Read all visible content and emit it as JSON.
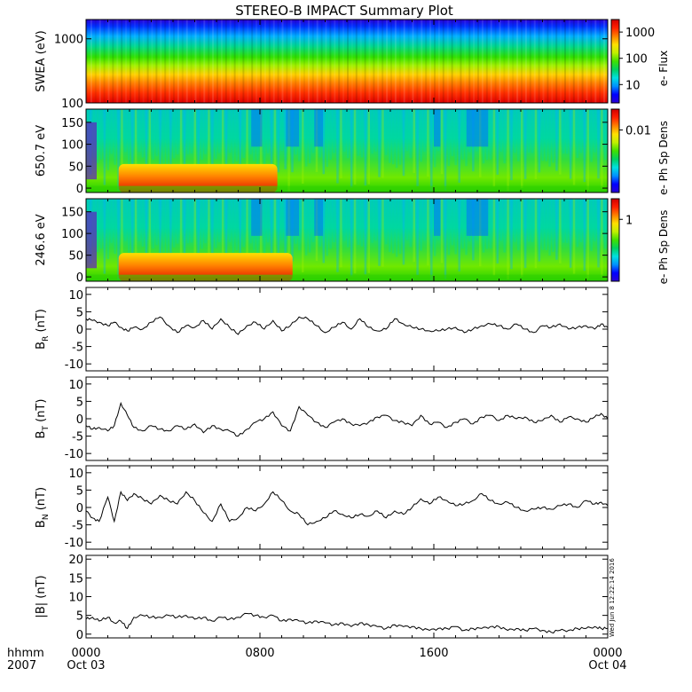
{
  "title": "STEREO-B IMPACT Summary Plot",
  "stamp": "Wed Jun  8 12:22:14 2016",
  "time_axis": {
    "row1_label": "hhmm",
    "row2_label": "2007",
    "ticks": [
      {
        "t": 0,
        "top": "0000",
        "bottom": "Oct 03"
      },
      {
        "t": 8,
        "top": "0800",
        "bottom": ""
      },
      {
        "t": 16,
        "top": "1600",
        "bottom": ""
      },
      {
        "t": 24,
        "top": "0000",
        "bottom": "Oct 04"
      }
    ]
  },
  "colors": {
    "spectrogram_scale": [
      "#2a00d5",
      "#0000ff",
      "#0090ff",
      "#00e0e0",
      "#00d060",
      "#40e000",
      "#c0f000",
      "#ffe000",
      "#ff8000",
      "#ff2000",
      "#d00000"
    ],
    "line": "#000000"
  },
  "chart_data": [
    {
      "type": "heatmap",
      "ylabel": "SWEA (eV)",
      "yscale": "log",
      "ylim": [
        100,
        2000
      ],
      "yticks": [
        {
          "v": 100,
          "label": "100"
        },
        {
          "v": 1000,
          "label": "1000"
        }
      ],
      "colorbar": {
        "label": "e- Flux",
        "scale": "log",
        "range": [
          2,
          3000
        ],
        "ticks": [
          {
            "v": 10,
            "label": "10"
          },
          {
            "v": 100,
            "label": "100"
          },
          {
            "v": 1000,
            "label": "1000"
          }
        ]
      },
      "description_values": "flux increases toward low energy; ~10 near 2000 eV, ~1000+ below 200 eV"
    },
    {
      "type": "heatmap",
      "ylabel": "650.7 eV",
      "ylim": [
        -10,
        180
      ],
      "yticks": [
        {
          "v": 0,
          "label": "0"
        },
        {
          "v": 50,
          "label": "50"
        },
        {
          "v": 100,
          "label": "100"
        },
        {
          "v": 150,
          "label": "150"
        }
      ],
      "colorbar": {
        "label": "e- Ph Sp Dens",
        "ticks": [
          {
            "v": 0.75,
            "label": "0.01"
          }
        ]
      },
      "features": [
        {
          "t_start": 1.5,
          "t_end": 8.8,
          "pa_max": 55,
          "level": "high"
        }
      ]
    },
    {
      "type": "heatmap",
      "ylabel": "246.6 eV",
      "ylim": [
        -10,
        180
      ],
      "yticks": [
        {
          "v": 0,
          "label": "0"
        },
        {
          "v": 50,
          "label": "50"
        },
        {
          "v": 100,
          "label": "100"
        },
        {
          "v": 150,
          "label": "150"
        }
      ],
      "colorbar": {
        "label": "e- Ph Sp Dens",
        "ticks": [
          {
            "v": 0.75,
            "label": "1"
          }
        ]
      },
      "features": [
        {
          "t_start": 1.5,
          "t_end": 9.5,
          "pa_max": 55,
          "level": "high"
        }
      ]
    },
    {
      "type": "line",
      "ylabel": "B_R (nT)",
      "ylim": [
        -12,
        12
      ],
      "yticks": [
        -10,
        -5,
        0,
        5,
        10
      ],
      "x": [
        0,
        0.3,
        0.6,
        1.0,
        1.3,
        1.6,
        1.9,
        2.2,
        2.6,
        3.0,
        3.4,
        3.8,
        4.2,
        4.6,
        5.0,
        5.4,
        5.8,
        6.2,
        6.6,
        7.0,
        7.4,
        7.8,
        8.2,
        8.6,
        9.0,
        9.4,
        9.8,
        10.2,
        10.6,
        11.0,
        11.4,
        11.8,
        12.2,
        12.6,
        13.0,
        13.4,
        13.8,
        14.2,
        14.6,
        15.0,
        15.4,
        15.8,
        16.2,
        16.6,
        17.0,
        17.4,
        17.8,
        18.2,
        18.6,
        19.0,
        19.4,
        19.8,
        20.2,
        20.6,
        21.0,
        21.4,
        21.8,
        22.2,
        22.6,
        23.0,
        23.4,
        23.7,
        24.0
      ],
      "values": [
        3,
        2.5,
        2,
        1,
        2,
        0.5,
        -0.5,
        0.5,
        0,
        2,
        3.5,
        1,
        -1,
        1,
        0.5,
        2.5,
        0,
        3,
        0.5,
        -1.5,
        1,
        2,
        0,
        2.5,
        -0.5,
        1,
        3.5,
        3,
        1,
        -1,
        0.5,
        2,
        0,
        3,
        0.5,
        -0.5,
        0,
        3,
        1.5,
        0.5,
        0,
        -0.5,
        -0.5,
        0,
        0.5,
        -1,
        0,
        1,
        1.5,
        1,
        0,
        1.5,
        0,
        -1,
        1,
        0.5,
        1.5,
        0,
        0.5,
        1,
        0,
        1.5,
        0.5
      ]
    },
    {
      "type": "line",
      "ylabel": "B_T (nT)",
      "ylim": [
        -12,
        12
      ],
      "yticks": [
        -10,
        -5,
        0,
        5,
        10
      ],
      "x": [
        0,
        0.3,
        0.6,
        1.0,
        1.3,
        1.6,
        1.9,
        2.2,
        2.6,
        3.0,
        3.4,
        3.8,
        4.2,
        4.6,
        5.0,
        5.4,
        5.8,
        6.2,
        6.6,
        7.0,
        7.4,
        7.8,
        8.2,
        8.6,
        9.0,
        9.4,
        9.8,
        10.2,
        10.6,
        11.0,
        11.4,
        11.8,
        12.2,
        12.6,
        13.0,
        13.4,
        13.8,
        14.2,
        14.6,
        15.0,
        15.4,
        15.8,
        16.2,
        16.6,
        17.0,
        17.4,
        17.8,
        18.2,
        18.6,
        19.0,
        19.4,
        19.8,
        20.2,
        20.6,
        21.0,
        21.4,
        21.8,
        22.2,
        22.6,
        23.0,
        23.4,
        23.7,
        24.0
      ],
      "values": [
        -2,
        -3,
        -2.5,
        -3.5,
        -2,
        4.5,
        1,
        -2.5,
        -3.5,
        -2,
        -3,
        -3.5,
        -2,
        -3,
        -1.5,
        -4,
        -2,
        -3,
        -3.5,
        -5,
        -3,
        -1,
        0,
        2,
        -2,
        -3.5,
        3.5,
        1,
        -1,
        -2.5,
        -1,
        0,
        -1.5,
        -2,
        -1,
        0.5,
        1,
        -0.5,
        -1,
        -2,
        1,
        -1.5,
        -1,
        -2.5,
        -1,
        0,
        -1.5,
        0.5,
        1,
        -0.5,
        1,
        0,
        0.5,
        -1,
        -0.5,
        1,
        -1,
        0.5,
        0,
        -1,
        0.5,
        1.5,
        0
      ]
    },
    {
      "type": "line",
      "ylabel": "B_N (nT)",
      "ylim": [
        -12,
        12
      ],
      "yticks": [
        -10,
        -5,
        0,
        5,
        10
      ],
      "x": [
        0,
        0.3,
        0.6,
        1.0,
        1.3,
        1.6,
        1.9,
        2.2,
        2.6,
        3.0,
        3.4,
        3.8,
        4.2,
        4.6,
        5.0,
        5.4,
        5.8,
        6.2,
        6.6,
        7.0,
        7.4,
        7.8,
        8.2,
        8.6,
        9.0,
        9.4,
        9.8,
        10.2,
        10.6,
        11.0,
        11.4,
        11.8,
        12.2,
        12.6,
        13.0,
        13.4,
        13.8,
        14.2,
        14.6,
        15.0,
        15.4,
        15.8,
        16.2,
        16.6,
        17.0,
        17.4,
        17.8,
        18.2,
        18.6,
        19.0,
        19.4,
        19.8,
        20.2,
        20.6,
        21.0,
        21.4,
        21.8,
        22.2,
        22.6,
        23.0,
        23.4,
        23.7,
        24.0
      ],
      "values": [
        -1,
        -3,
        -4,
        3,
        -4,
        4.5,
        2,
        4,
        2.5,
        1,
        3.5,
        2,
        1,
        4.5,
        2,
        -1.5,
        -4,
        1,
        -4,
        -3,
        0,
        -1,
        1,
        4.5,
        2,
        -1,
        -2,
        -5,
        -4,
        -3,
        -1,
        -2,
        -3,
        -2,
        -2.5,
        -1,
        -3,
        -1,
        -2,
        0,
        2.5,
        1,
        3,
        2,
        0.5,
        1,
        2,
        4,
        2,
        1,
        1.5,
        0,
        -1,
        -0.5,
        0,
        -0.5,
        0.5,
        1,
        0,
        2,
        1,
        1.5,
        0.5
      ]
    },
    {
      "type": "line",
      "ylabel": "|B| (nT)",
      "ylim": [
        -1,
        21
      ],
      "yticks": [
        0,
        5,
        10,
        15,
        20
      ],
      "x": [
        0,
        0.3,
        0.6,
        1.0,
        1.3,
        1.6,
        1.9,
        2.2,
        2.6,
        3.0,
        3.4,
        3.8,
        4.2,
        4.6,
        5.0,
        5.4,
        5.8,
        6.2,
        6.6,
        7.0,
        7.4,
        7.8,
        8.2,
        8.6,
        9.0,
        9.4,
        9.8,
        10.2,
        10.6,
        11.0,
        11.4,
        11.8,
        12.2,
        12.6,
        13.0,
        13.4,
        13.8,
        14.2,
        14.6,
        15.0,
        15.4,
        15.8,
        16.2,
        16.6,
        17.0,
        17.4,
        17.8,
        18.2,
        18.6,
        19.0,
        19.4,
        19.8,
        20.2,
        20.6,
        21.0,
        21.4,
        21.8,
        22.2,
        22.6,
        23.0,
        23.4,
        23.7,
        24.0
      ],
      "values": [
        4,
        4.5,
        3.5,
        4.5,
        3,
        3.5,
        1.5,
        4.5,
        5,
        4.5,
        4.5,
        5,
        4.5,
        5,
        4,
        4.5,
        3.5,
        4.5,
        4,
        4.5,
        5.5,
        5,
        4.5,
        5,
        3.5,
        4,
        3.5,
        3,
        3.5,
        3,
        2.5,
        3,
        2,
        3,
        2.5,
        2,
        1.5,
        2.5,
        2,
        2,
        1.5,
        1,
        1.5,
        1.5,
        2,
        1,
        1.5,
        1.5,
        2,
        2,
        1,
        1.5,
        1,
        1.5,
        1,
        0.5,
        1,
        1,
        1.5,
        1.5,
        2,
        1.5,
        1.5
      ]
    }
  ]
}
